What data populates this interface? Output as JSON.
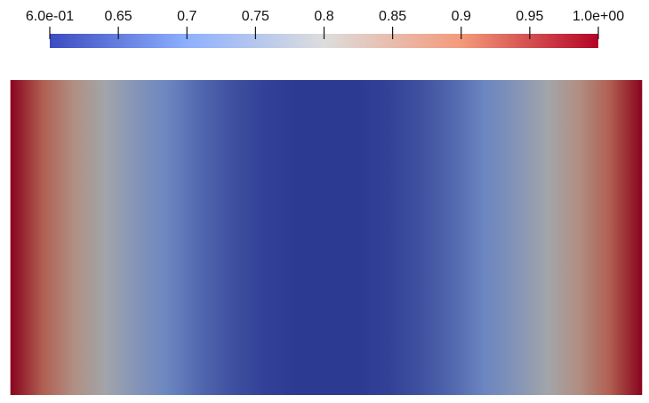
{
  "chart_data": {
    "type": "heatmap",
    "clim": [
      0.6,
      1.0
    ],
    "cticks": [
      {
        "value": 0.6,
        "label": "6.0e-01"
      },
      0.65,
      0.7,
      0.75,
      0.8,
      0.85,
      0.9,
      0.95,
      {
        "value": 1.0,
        "label": "1.0e+00"
      }
    ],
    "colormap": [
      "#3b4cc0",
      "#8db0fe",
      "#dddddd",
      "#f49a7b",
      "#b40426"
    ],
    "values": [
      1.0,
      0.92,
      0.85,
      0.79,
      0.74,
      0.7,
      0.66,
      0.63,
      0.61,
      0.6,
      0.6,
      0.6,
      0.61,
      0.63,
      0.66,
      0.7,
      0.74,
      0.79,
      0.85,
      0.92,
      1.0
    ]
  }
}
